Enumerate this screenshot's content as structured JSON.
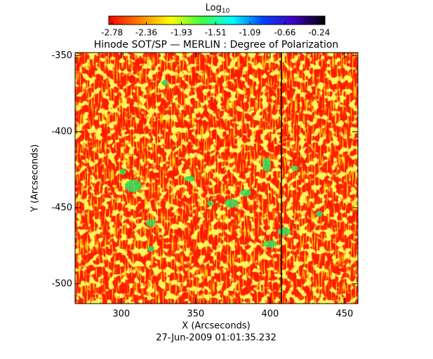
{
  "chart_data": {
    "type": "heatmap",
    "title": "Hinode SOT/SP — MERLIN : Degree of Polarization",
    "x_label": "X (Arcseconds)",
    "y_label": "Y (Arcseconds)",
    "footer": "27-Jun-2009 01:01:35.232",
    "xlim": [
      269,
      459
    ],
    "xticks": [
      300,
      350,
      400,
      450
    ],
    "ylim": [
      -513,
      -348
    ],
    "yticks": [
      -500,
      -450,
      -400,
      -350
    ],
    "colorbar": {
      "label": "Log",
      "label_sub": "10",
      "lim": [
        -2.82,
        -0.17
      ],
      "ticks": [
        -2.78,
        -2.36,
        -1.93,
        -1.51,
        -1.09,
        -0.66,
        -0.24
      ],
      "colors": [
        "#ff0000",
        "#ff8000",
        "#ffff00",
        "#40ff40",
        "#00ffff",
        "#0040ff",
        "#4000c0",
        "#000000"
      ]
    }
  }
}
